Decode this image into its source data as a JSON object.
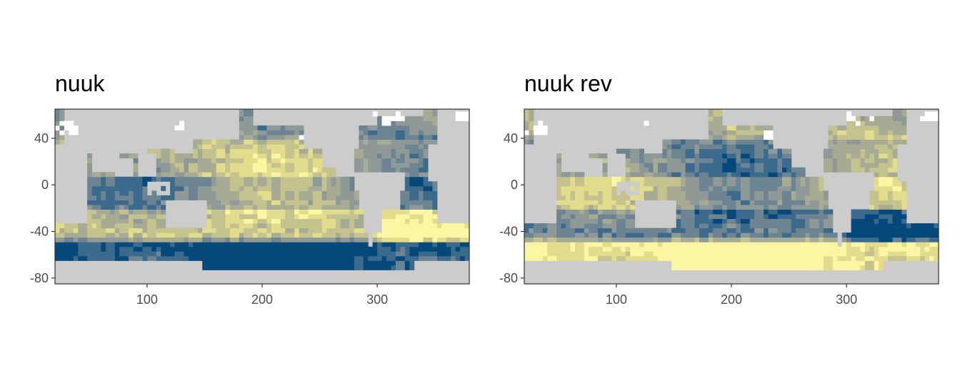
{
  "chart_data": [
    {
      "type": "heatmap",
      "title": "nuuk",
      "xlabel": "",
      "ylabel": "",
      "xlim": [
        20,
        380
      ],
      "ylim": [
        -85,
        65
      ],
      "x_ticks": [
        100,
        200,
        300
      ],
      "y_ticks": [
        40,
        0,
        -40,
        -80
      ],
      "x_tick_labels": [
        "100",
        "200",
        "300"
      ],
      "y_tick_labels": [
        "40",
        "0",
        "-40",
        "-80"
      ],
      "grid": false,
      "legend": "none",
      "palette": [
        "#05487a",
        "#3c6a8c",
        "#6d8492",
        "#8f9a98",
        "#a8ab93",
        "#c4c38f",
        "#e1dd8c",
        "#fcf6a4"
      ],
      "land_color": "#cccccc",
      "ice_color": "#ffffff"
    },
    {
      "type": "heatmap",
      "title": "nuuk rev",
      "xlabel": "",
      "ylabel": "",
      "xlim": [
        20,
        380
      ],
      "ylim": [
        -85,
        65
      ],
      "x_ticks": [
        100,
        200,
        300
      ],
      "y_ticks": [
        40,
        0,
        -40,
        -80
      ],
      "x_tick_labels": [
        "100",
        "200",
        "300"
      ],
      "y_tick_labels": [
        "40",
        "0",
        "-40",
        "-80"
      ],
      "grid": false,
      "legend": "none",
      "palette": [
        "#fcf6a4",
        "#e1dd8c",
        "#c4c38f",
        "#a8ab93",
        "#8f9a98",
        "#6d8492",
        "#3c6a8c",
        "#05487a"
      ],
      "land_color": "#cccccc",
      "ice_color": "#ffffff"
    }
  ]
}
